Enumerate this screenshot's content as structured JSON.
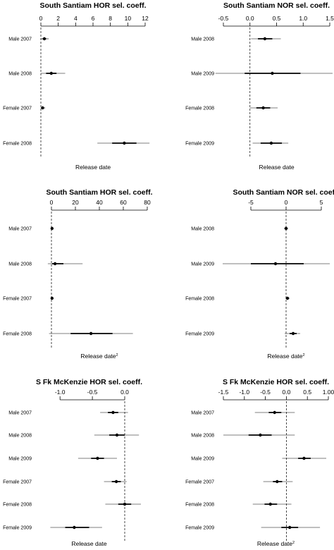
{
  "chart_data": [
    {
      "type": "forest",
      "title": "South Santiam HOR sel. coeff.",
      "xlabel": "Release date",
      "xlabel_sup": "",
      "xlim": [
        0,
        12
      ],
      "ticks": [
        "0",
        "2",
        "4",
        "6",
        "8",
        "10",
        "12"
      ],
      "tick_values": [
        0,
        2,
        4,
        6,
        8,
        10,
        12
      ],
      "reference": 0,
      "rows": [
        {
          "label": "Male 2007",
          "estimate": 0.4,
          "ci50": [
            0.2,
            0.6
          ],
          "ci95": [
            0.0,
            0.9
          ]
        },
        {
          "label": "Male 2008",
          "estimate": 1.2,
          "ci50": [
            0.6,
            1.8
          ],
          "ci95": [
            0.0,
            2.8
          ]
        },
        {
          "label": "Female 2007",
          "estimate": 0.2,
          "ci50": [
            0.1,
            0.3
          ],
          "ci95": [
            0.0,
            0.5
          ]
        },
        {
          "label": "Female 2008",
          "estimate": 9.6,
          "ci50": [
            8.2,
            11.0
          ],
          "ci95": [
            6.5,
            12.5
          ]
        }
      ]
    },
    {
      "type": "forest",
      "title": "South Santiam NOR sel. coeff.",
      "xlabel": "Release date",
      "xlabel_sup": "",
      "xlim": [
        -0.5,
        1.5
      ],
      "ticks": [
        "-0.5",
        "0.0",
        "0.5",
        "1.0",
        "1.5"
      ],
      "tick_values": [
        -0.5,
        0.0,
        0.5,
        1.0,
        1.5
      ],
      "reference": 0,
      "rows": [
        {
          "label": "Male 2008",
          "estimate": 0.28,
          "ci50": [
            0.15,
            0.42
          ],
          "ci95": [
            0.02,
            0.58
          ]
        },
        {
          "label": "Male 2009",
          "estimate": 0.42,
          "ci50": [
            -0.1,
            0.95
          ],
          "ci95": [
            -0.65,
            1.6
          ]
        },
        {
          "label": "Female 2008",
          "estimate": 0.25,
          "ci50": [
            0.12,
            0.38
          ],
          "ci95": [
            0.0,
            0.52
          ]
        },
        {
          "label": "Female 2009",
          "estimate": 0.4,
          "ci50": [
            0.2,
            0.6
          ],
          "ci95": [
            0.05,
            0.72
          ]
        }
      ]
    },
    {
      "type": "forest",
      "title": "South Santiam HOR sel. coeff.",
      "xlabel": "Release date",
      "xlabel_sup": "2",
      "xlim": [
        0,
        80
      ],
      "ticks": [
        "0",
        "20",
        "40",
        "60",
        "80"
      ],
      "tick_values": [
        0,
        20,
        40,
        60,
        80
      ],
      "reference": 0,
      "rows": [
        {
          "label": "Male 2007",
          "estimate": 0.5,
          "ci50": [
            0.2,
            0.8
          ],
          "ci95": [
            0.0,
            1.2
          ]
        },
        {
          "label": "Male 2008",
          "estimate": 3.0,
          "ci50": [
            0.5,
            10.0
          ],
          "ci95": [
            -3.0,
            26.0
          ]
        },
        {
          "label": "Female 2007",
          "estimate": 0.5,
          "ci50": [
            0.3,
            0.7
          ],
          "ci95": [
            0.0,
            1.0
          ]
        },
        {
          "label": "Female 2008",
          "estimate": 33.0,
          "ci50": [
            16.0,
            51.0
          ],
          "ci95": [
            -2.0,
            68.0
          ]
        }
      ]
    },
    {
      "type": "forest",
      "title": "South Santiam NOR sel. coeff.",
      "xlabel": "Release date",
      "xlabel_sup": "2",
      "xlim": [
        -5,
        5
      ],
      "ticks": [
        "-5",
        "0",
        "5"
      ],
      "tick_values": [
        -5,
        0,
        5
      ],
      "reference": 0,
      "rows": [
        {
          "label": "Male 2008",
          "estimate": 0.0,
          "ci50": [
            -0.15,
            0.15
          ],
          "ci95": [
            -0.3,
            0.3
          ]
        },
        {
          "label": "Male 2009",
          "estimate": -1.5,
          "ci50": [
            -5.0,
            2.5
          ],
          "ci95": [
            -9.0,
            6.2
          ]
        },
        {
          "label": "Female 2008",
          "estimate": 0.2,
          "ci50": [
            0.05,
            0.35
          ],
          "ci95": [
            -0.1,
            0.5
          ]
        },
        {
          "label": "Female 2009",
          "estimate": 1.0,
          "ci50": [
            0.5,
            1.5
          ],
          "ci95": [
            -0.2,
            2.0
          ]
        }
      ]
    },
    {
      "type": "forest",
      "title": "S Fk McKenzie HOR sel. coeff.",
      "xlabel": "Release date",
      "xlabel_sup": "",
      "xlim": [
        -1.1,
        0.0
      ],
      "ticks": [
        "-1.0",
        "-0.5",
        "0.0"
      ],
      "tick_values": [
        -1.0,
        -0.5,
        0.0
      ],
      "reference": 0,
      "rows": [
        {
          "label": "Male 2007",
          "estimate": -0.18,
          "ci50": [
            -0.26,
            -0.1
          ],
          "ci95": [
            -0.38,
            0.05
          ]
        },
        {
          "label": "Male 2008",
          "estimate": -0.12,
          "ci50": [
            -0.24,
            0.0
          ],
          "ci95": [
            -0.47,
            0.22
          ]
        },
        {
          "label": "Male 2009",
          "estimate": -0.42,
          "ci50": [
            -0.52,
            -0.32
          ],
          "ci95": [
            -0.72,
            -0.12
          ]
        },
        {
          "label": "Female 2007",
          "estimate": -0.13,
          "ci50": [
            -0.2,
            -0.06
          ],
          "ci95": [
            -0.32,
            0.03
          ]
        },
        {
          "label": "Female 2008",
          "estimate": 0.0,
          "ci50": [
            -0.1,
            0.1
          ],
          "ci95": [
            -0.3,
            0.25
          ]
        },
        {
          "label": "Female 2009",
          "estimate": -0.78,
          "ci50": [
            -0.92,
            -0.55
          ],
          "ci95": [
            -1.15,
            -0.35
          ]
        }
      ]
    },
    {
      "type": "forest",
      "title": "S Fk McKenzie HOR sel. coeff.",
      "xlabel": "Release date",
      "xlabel_sup": "2",
      "xlim": [
        -1.5,
        1.0
      ],
      "ticks": [
        "-1.5",
        "-1.0",
        "-0.5",
        "0.0",
        "0.5",
        "1.00"
      ],
      "tick_values": [
        -1.5,
        -1.0,
        -0.5,
        0.0,
        0.5,
        1.0
      ],
      "reference": 0,
      "rows": [
        {
          "label": "Male 2007",
          "estimate": -0.28,
          "ci50": [
            -0.42,
            -0.12
          ],
          "ci95": [
            -0.75,
            0.2
          ]
        },
        {
          "label": "Male 2008",
          "estimate": -0.62,
          "ci50": [
            -0.9,
            -0.35
          ],
          "ci95": [
            -1.5,
            0.2
          ]
        },
        {
          "label": "Male 2009",
          "estimate": 0.42,
          "ci50": [
            0.28,
            0.58
          ],
          "ci95": [
            -0.1,
            0.95
          ]
        },
        {
          "label": "Female 2007",
          "estimate": -0.22,
          "ci50": [
            -0.32,
            -0.1
          ],
          "ci95": [
            -0.55,
            0.15
          ]
        },
        {
          "label": "Female 2008",
          "estimate": -0.38,
          "ci50": [
            -0.52,
            -0.22
          ],
          "ci95": [
            -0.8,
            0.12
          ]
        },
        {
          "label": "Female 2009",
          "estimate": 0.08,
          "ci50": [
            -0.12,
            0.28
          ],
          "ci95": [
            -0.6,
            0.8
          ]
        }
      ]
    }
  ]
}
